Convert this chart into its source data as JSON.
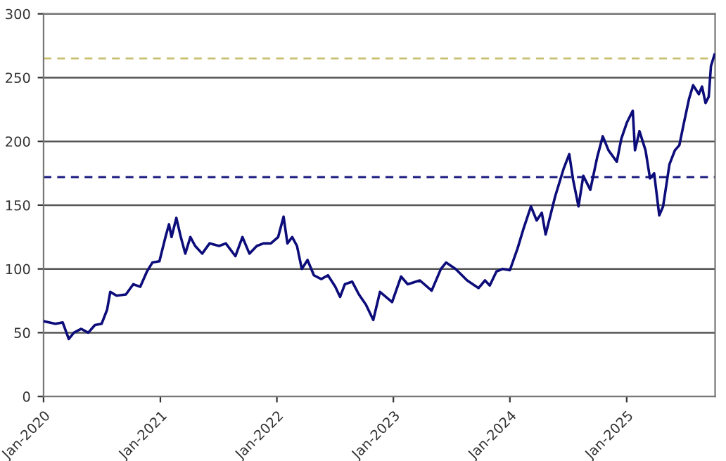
{
  "chart_data": {
    "type": "line",
    "x": [
      "2020-01-01",
      "2020-02-07",
      "2020-03-01",
      "2020-03-20",
      "2020-04-05",
      "2020-04-28",
      "2020-05-20",
      "2020-06-10",
      "2020-07-01",
      "2020-07-18",
      "2020-07-28",
      "2020-08-17",
      "2020-09-15",
      "2020-10-08",
      "2020-10-30",
      "2020-11-20",
      "2020-12-07",
      "2020-12-29",
      "2021-01-17",
      "2021-01-28",
      "2021-02-05",
      "2021-02-20",
      "2021-03-06",
      "2021-03-20",
      "2021-04-05",
      "2021-04-20",
      "2021-05-12",
      "2021-06-04",
      "2021-07-04",
      "2021-07-25",
      "2021-08-24",
      "2021-09-15",
      "2021-10-07",
      "2021-10-30",
      "2021-11-20",
      "2021-12-13",
      "2022-01-05",
      "2022-01-22",
      "2022-02-03",
      "2022-02-18",
      "2022-03-05",
      "2022-03-20",
      "2022-04-07",
      "2022-04-27",
      "2022-05-20",
      "2022-06-10",
      "2022-07-03",
      "2022-07-18",
      "2022-08-02",
      "2022-08-25",
      "2022-09-15",
      "2022-10-07",
      "2022-10-30",
      "2022-11-20",
      "2022-12-28",
      "2023-01-25",
      "2023-02-15",
      "2023-03-25",
      "2023-05-01",
      "2023-05-30",
      "2023-06-15",
      "2023-07-15",
      "2023-08-20",
      "2023-09-25",
      "2023-10-15",
      "2023-10-30",
      "2023-11-20",
      "2023-12-10",
      "2024-01-01",
      "2024-01-25",
      "2024-02-12",
      "2024-03-07",
      "2024-03-25",
      "2024-04-10",
      "2024-04-22",
      "2024-05-22",
      "2024-06-18",
      "2024-07-05",
      "2024-07-17",
      "2024-08-03",
      "2024-08-18",
      "2024-09-09",
      "2024-10-01",
      "2024-10-18",
      "2024-11-05",
      "2024-12-01",
      "2024-12-15",
      "2025-01-02",
      "2025-01-20",
      "2025-01-27",
      "2025-02-10",
      "2025-03-01",
      "2025-03-15",
      "2025-03-28",
      "2025-04-13",
      "2025-04-25",
      "2025-05-15",
      "2025-06-01",
      "2025-06-15",
      "2025-06-28",
      "2025-07-15",
      "2025-07-28",
      "2025-08-15",
      "2025-08-25",
      "2025-09-05",
      "2025-09-15",
      "2025-09-22",
      "2025-10-03"
    ],
    "series": [
      {
        "color": "#0c0c7a",
        "values": [
          59,
          57,
          58,
          45,
          50,
          53,
          50,
          56,
          57,
          68,
          82,
          79,
          80,
          88,
          86,
          98,
          105,
          106,
          125,
          135,
          125,
          140,
          125,
          112,
          125,
          118,
          112,
          120,
          118,
          120,
          110,
          125,
          112,
          118,
          120,
          120,
          125,
          141,
          120,
          125,
          118,
          100,
          107,
          95,
          92,
          95,
          86,
          78,
          88,
          90,
          80,
          72,
          60,
          82,
          74,
          94,
          88,
          91,
          83,
          100,
          105,
          100,
          91,
          85,
          91,
          87,
          98,
          100,
          99,
          116,
          131,
          149,
          138,
          144,
          127,
          157,
          179,
          190,
          170,
          149,
          173,
          162,
          188,
          204,
          193,
          184,
          202,
          215,
          224,
          193,
          208,
          193,
          171,
          175,
          142,
          149,
          182,
          193,
          197,
          213,
          233,
          244,
          237,
          243,
          230,
          235,
          259,
          268
        ]
      }
    ],
    "xlim": [
      "2020-01-01",
      "2025-10-05"
    ],
    "xticks": [
      {
        "value": "2020-01-01",
        "label": "Jan-2020"
      },
      {
        "value": "2021-01-01",
        "label": "Jan-2021"
      },
      {
        "value": "2022-01-01",
        "label": "Jan-2022"
      },
      {
        "value": "2023-01-01",
        "label": "Jan-2023"
      },
      {
        "value": "2024-01-01",
        "label": "Jan-2024"
      },
      {
        "value": "2025-01-01",
        "label": "Jan-2025"
      }
    ],
    "ylim": [
      0,
      300
    ],
    "yticks": [
      0,
      50,
      100,
      150,
      200,
      250,
      300
    ],
    "grid": "y",
    "legend": false,
    "marker": "none",
    "line_style": "solid",
    "ref_lines": [
      {
        "axis": "y",
        "value": 265,
        "color": "#c8c070",
        "line_style": "dashed"
      },
      {
        "axis": "y",
        "value": 172,
        "color": "#1a1a80",
        "line_style": "dashed"
      }
    ]
  }
}
